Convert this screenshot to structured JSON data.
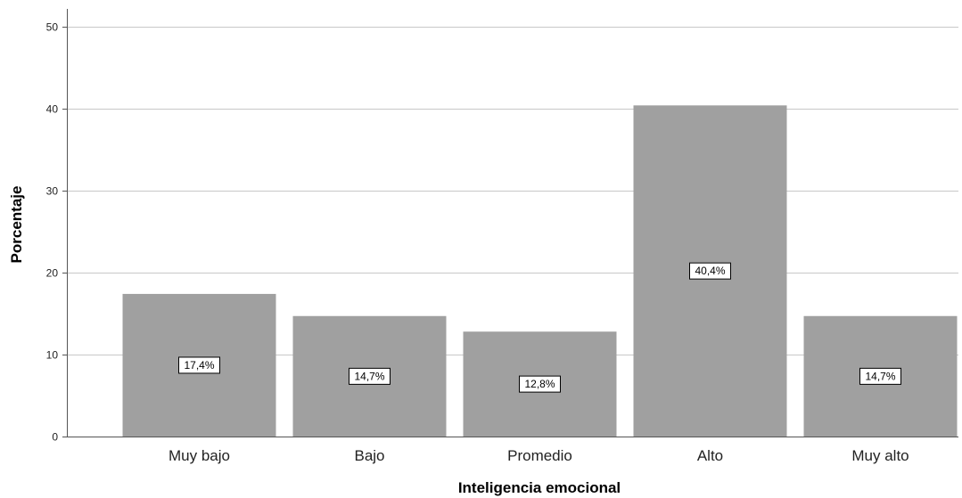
{
  "chart_data": {
    "type": "bar",
    "categories": [
      "Muy bajo",
      "Bajo",
      "Promedio",
      "Alto",
      "Muy alto"
    ],
    "values": [
      17.4,
      14.7,
      12.8,
      40.4,
      14.7
    ],
    "data_labels": [
      "17,4%",
      "14,7%",
      "12,8%",
      "40,4%",
      "14,7%"
    ],
    "xlabel": "Inteligencia emocional",
    "ylabel": "Porcentaje",
    "ylim": [
      0,
      50
    ],
    "yticks": [
      0,
      10,
      20,
      30,
      40,
      50
    ],
    "ytick_labels": [
      "0",
      "10",
      "20",
      "30",
      "40",
      "50"
    ],
    "grid": true,
    "colors": {
      "bar": "#a0a0a0",
      "grid": "#c8c8c8",
      "axis": "#555555",
      "label_box_border": "#000000",
      "label_box_fill": "#ffffff"
    }
  }
}
